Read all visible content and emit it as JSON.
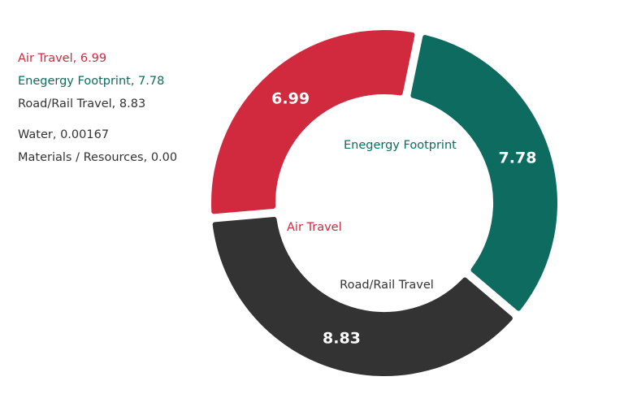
{
  "chart_data": {
    "type": "pie",
    "donut": true,
    "title": "",
    "legend_position": "top-left",
    "slices": [
      {
        "name": "Air Travel",
        "value": 6.99,
        "value_label": "6.99",
        "legend_text": "Air Travel, 6.99",
        "color": "#d1293d"
      },
      {
        "name": "Enegergy Footprint",
        "value": 7.78,
        "value_label": "7.78",
        "legend_text": "Enegergy Footprint, 7.78",
        "color": "#0d6b5f"
      },
      {
        "name": "Road/Rail Travel",
        "value": 8.83,
        "value_label": "8.83",
        "legend_text": "Road/Rail Travel, 8.83",
        "color": "#333333"
      },
      {
        "name": "Water",
        "value": 0.00167,
        "value_label": "",
        "legend_text": "Water, 0.00167",
        "color": "#333333"
      },
      {
        "name": "Materials / Resources",
        "value": 0.0,
        "value_label": "",
        "legend_text": "Materials / Resources, 0.00",
        "color": "#333333"
      }
    ]
  }
}
